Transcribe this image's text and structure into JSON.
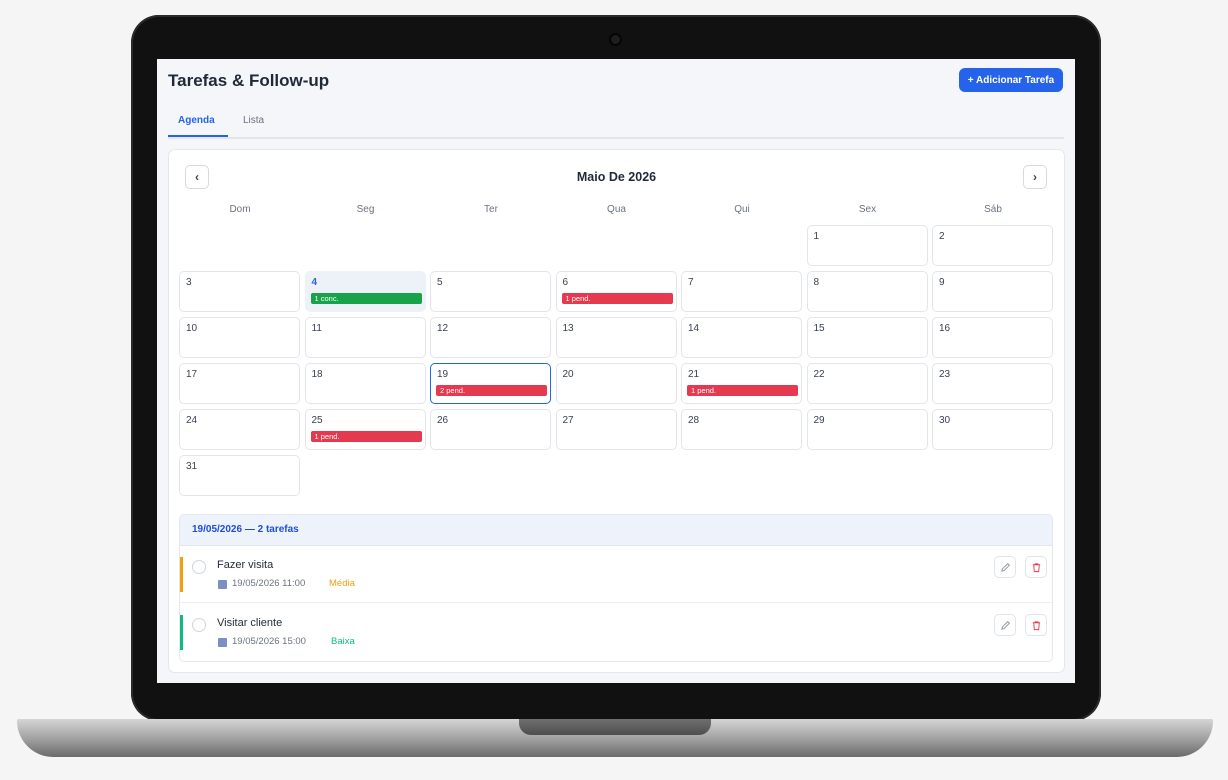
{
  "header": {
    "title": "Tarefas & Follow-up",
    "add_button": "+ Adicionar Tarefa"
  },
  "tabs": [
    {
      "label": "Agenda",
      "active": true
    },
    {
      "label": "Lista",
      "active": false
    }
  ],
  "calendar": {
    "month_label": "Maio De 2026",
    "prev_icon": "chevron-left-icon",
    "next_icon": "chevron-right-icon",
    "weekdays": [
      "Dom",
      "Seg",
      "Ter",
      "Qua",
      "Qui",
      "Sex",
      "Sáb"
    ],
    "days": [
      {
        "n": "1"
      },
      {
        "n": "2"
      },
      {
        "n": "3"
      },
      {
        "n": "4",
        "badge": "1 conc.",
        "status": "done",
        "today": true
      },
      {
        "n": "5"
      },
      {
        "n": "6",
        "badge": "1 pend.",
        "status": "pend"
      },
      {
        "n": "7"
      },
      {
        "n": "8"
      },
      {
        "n": "9"
      },
      {
        "n": "10"
      },
      {
        "n": "11"
      },
      {
        "n": "12"
      },
      {
        "n": "13"
      },
      {
        "n": "14"
      },
      {
        "n": "15"
      },
      {
        "n": "16"
      },
      {
        "n": "17"
      },
      {
        "n": "18"
      },
      {
        "n": "19",
        "badge": "2 pend.",
        "status": "pend",
        "selected": true
      },
      {
        "n": "20"
      },
      {
        "n": "21",
        "badge": "1 pend.",
        "status": "pend"
      },
      {
        "n": "22"
      },
      {
        "n": "23"
      },
      {
        "n": "24"
      },
      {
        "n": "25",
        "badge": "1 pend.",
        "status": "pend"
      },
      {
        "n": "26"
      },
      {
        "n": "27"
      },
      {
        "n": "28"
      },
      {
        "n": "29"
      },
      {
        "n": "30"
      },
      {
        "n": "31"
      }
    ]
  },
  "day_panel": {
    "header": "19/05/2026 — 2 tarefas",
    "tasks": [
      {
        "name": "Fazer visita",
        "datetime": "19/05/2026 11:00",
        "priority": "Média",
        "color": "#f59e0b"
      },
      {
        "name": "Visitar cliente",
        "datetime": "19/05/2026 15:00",
        "priority": "Baixa",
        "color": "#10b981"
      }
    ]
  },
  "icons": {
    "date": "calendar-icon",
    "edit": "pencil-icon",
    "delete": "trash-icon",
    "complete": "circle-check-icon"
  },
  "colors": {
    "accent": "#2563eb",
    "done": "#16a34a",
    "pending": "#e53950"
  }
}
